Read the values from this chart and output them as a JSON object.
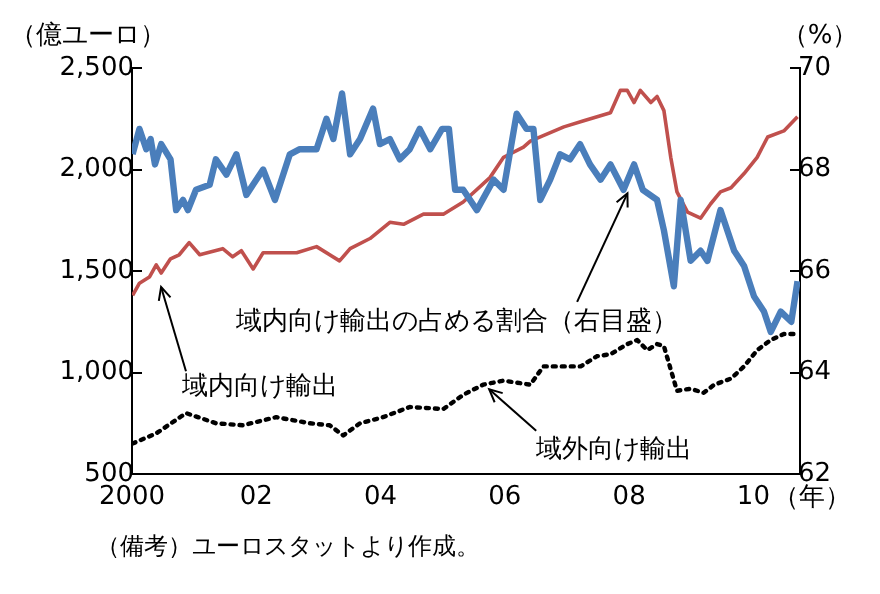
{
  "chart_data": {
    "type": "line",
    "ylabel": "（億ユーロ）",
    "y2label": "（%）",
    "xlabel": "（年）",
    "xlim": [
      2000,
      2010.75
    ],
    "xticks": [
      2000,
      {
        "value": 2002,
        "label": "02"
      },
      {
        "value": 2004,
        "label": "04"
      },
      {
        "value": 2006,
        "label": "06"
      },
      {
        "value": 2008,
        "label": "08"
      },
      {
        "value": 2010,
        "label": "10"
      }
    ],
    "ylim": [
      500,
      2500
    ],
    "yticks": [
      500,
      {
        "value": 1000,
        "label": "1,000"
      },
      {
        "value": 1500,
        "label": "1,500"
      },
      {
        "value": 2000,
        "label": "2,000"
      },
      {
        "value": 2500,
        "label": "2,500"
      }
    ],
    "y2lim": [
      62,
      70
    ],
    "y2ticks": [
      62,
      64,
      66,
      68,
      70
    ],
    "grid": false,
    "legend": false,
    "marker": "none",
    "series": [
      {
        "color": "#4a7ebb",
        "axis": "y2",
        "line_style": "solid",
        "x": [
          2000.01,
          2000.12,
          2000.23,
          2000.3,
          2000.37,
          2000.47,
          2000.62,
          2000.71,
          2000.82,
          2000.9,
          2001.03,
          2001.25,
          2001.35,
          2001.52,
          2001.68,
          2001.84,
          2002.11,
          2002.3,
          2002.54,
          2002.7,
          2002.97,
          2003.13,
          2003.24,
          2003.38,
          2003.51,
          2003.67,
          2003.88,
          2003.99,
          2004.15,
          2004.31,
          2004.47,
          2004.63,
          2004.8,
          2004.99,
          2005.1,
          2005.2,
          2005.33,
          2005.55,
          2005.82,
          2005.98,
          2006.19,
          2006.35,
          2006.46,
          2006.57,
          2006.73,
          2006.89,
          2007.05,
          2007.21,
          2007.37,
          2007.54,
          2007.7,
          2007.91,
          2008.08,
          2008.22,
          2008.45,
          2008.56,
          2008.72,
          2008.83,
          2008.99,
          2009.15,
          2009.26,
          2009.47,
          2009.69,
          2009.85,
          2010.01,
          2010.17,
          2010.28,
          2010.44,
          2010.61,
          2010.71
        ],
        "values": [
          68.3,
          68.8,
          68.4,
          68.6,
          68.1,
          68.5,
          68.2,
          67.2,
          67.4,
          67.2,
          67.6,
          67.7,
          68.2,
          67.9,
          68.3,
          67.5,
          68.0,
          67.4,
          68.3,
          68.4,
          68.4,
          69.0,
          68.6,
          69.5,
          68.3,
          68.6,
          69.2,
          68.5,
          68.6,
          68.2,
          68.4,
          68.8,
          68.4,
          68.8,
          68.8,
          67.6,
          67.6,
          67.2,
          67.8,
          67.6,
          69.1,
          68.8,
          68.8,
          67.4,
          67.8,
          68.3,
          68.2,
          68.5,
          68.1,
          67.8,
          68.1,
          67.6,
          68.1,
          67.6,
          67.4,
          66.8,
          65.7,
          67.4,
          66.2,
          66.4,
          66.2,
          67.2,
          66.4,
          66.1,
          65.5,
          65.2,
          64.8,
          65.2,
          65.0,
          65.8
        ]
      },
      {
        "color": "#c0504d",
        "line_style": "solid",
        "x": [
          2000.01,
          2000.12,
          2000.28,
          2000.39,
          2000.47,
          2000.62,
          2000.76,
          2000.92,
          2001.09,
          2001.46,
          2001.62,
          2001.76,
          2001.95,
          2002.11,
          2002.65,
          2002.97,
          2003.34,
          2003.51,
          2003.83,
          2004.15,
          2004.37,
          2004.69,
          2005.01,
          2005.33,
          2005.76,
          2005.98,
          2006.3,
          2006.41,
          2006.95,
          2007.27,
          2007.7,
          2007.86,
          2007.97,
          2008.08,
          2008.18,
          2008.35,
          2008.45,
          2008.56,
          2008.67,
          2008.77,
          2008.94,
          2009.15,
          2009.31,
          2009.47,
          2009.64,
          2009.85,
          2010.06,
          2010.23,
          2010.49,
          2010.71
        ],
        "values": [
          1380,
          1440,
          1470,
          1530,
          1490,
          1560,
          1580,
          1640,
          1580,
          1610,
          1570,
          1600,
          1510,
          1590,
          1590,
          1620,
          1550,
          1610,
          1660,
          1740,
          1730,
          1780,
          1780,
          1840,
          1960,
          2060,
          2110,
          2140,
          2210,
          2240,
          2280,
          2390,
          2390,
          2330,
          2390,
          2330,
          2360,
          2290,
          2060,
          1890,
          1790,
          1760,
          1830,
          1890,
          1910,
          1980,
          2060,
          2160,
          2190,
          2260
        ]
      },
      {
        "color": "#000000",
        "line_style": "dotted",
        "x": [
          2000.01,
          2000.39,
          2000.87,
          2001.35,
          2001.78,
          2002.32,
          2002.86,
          2003.18,
          2003.4,
          2003.67,
          2004.04,
          2004.47,
          2005.01,
          2005.33,
          2005.65,
          2005.98,
          2006.41,
          2006.62,
          2006.95,
          2007.22,
          2007.48,
          2007.7,
          2007.97,
          2008.13,
          2008.29,
          2008.45,
          2008.56,
          2008.77,
          2008.99,
          2009.2,
          2009.37,
          2009.64,
          2009.85,
          2010.06,
          2010.28,
          2010.49,
          2010.71
        ],
        "values": [
          650,
          700,
          800,
          750,
          740,
          780,
          750,
          740,
          690,
          750,
          780,
          830,
          820,
          890,
          940,
          960,
          940,
          1030,
          1030,
          1030,
          1080,
          1090,
          1140,
          1160,
          1110,
          1140,
          1130,
          910,
          920,
          900,
          940,
          970,
          1030,
          1110,
          1160,
          1190,
          1190
        ]
      }
    ],
    "annotations": [
      {
        "text": "域内向け輸出の占める割合（右目盛）",
        "x": 2008.0,
        "y": 1900
      },
      {
        "text": "域内向け輸出",
        "x": 2000.45,
        "y": 1440
      },
      {
        "text": "域外向け輸出",
        "x": 2005.7,
        "y": 930
      },
      "（備考）ユーロスタットより作成。"
    ]
  }
}
